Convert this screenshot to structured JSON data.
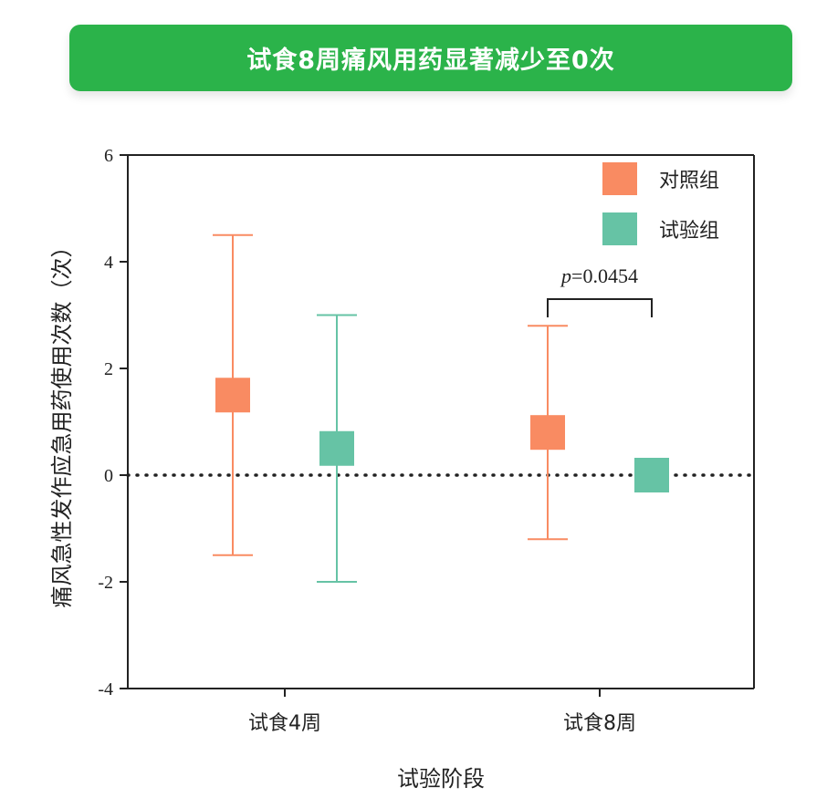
{
  "banner": {
    "title": "试食8周痛风用药显著减少至0次"
  },
  "colors": {
    "banner": "#2bb34a",
    "control": "#f98b62",
    "trial": "#66c3a5",
    "axis": "#222222"
  },
  "chart_data": {
    "type": "scatter",
    "subtype": "mean-with-range-error-bars",
    "xlabel": "试验阶段",
    "ylabel": "痛风急性发作应急用药使用次数（次）",
    "ylim": [
      -4,
      6
    ],
    "yticks": [
      -4,
      -2,
      0,
      2,
      4,
      6
    ],
    "categories": [
      "试食4周",
      "试食8周"
    ],
    "reference_line": {
      "y": 0,
      "style": "dotted"
    },
    "legend_position": "top-right",
    "grid": false,
    "series": [
      {
        "name": "对照组",
        "color": "#f98b62",
        "values": [
          1.5,
          0.8
        ],
        "lower": [
          -1.5,
          -1.2
        ],
        "upper": [
          4.5,
          2.8
        ]
      },
      {
        "name": "试验组",
        "color": "#66c3a5",
        "values": [
          0.5,
          0.0
        ],
        "lower": [
          -2.0,
          0.0
        ],
        "upper": [
          3.0,
          0.0
        ]
      }
    ],
    "annotations": [
      {
        "category": "试食8周",
        "text_italic": "p",
        "text": "=0.0454"
      }
    ]
  }
}
